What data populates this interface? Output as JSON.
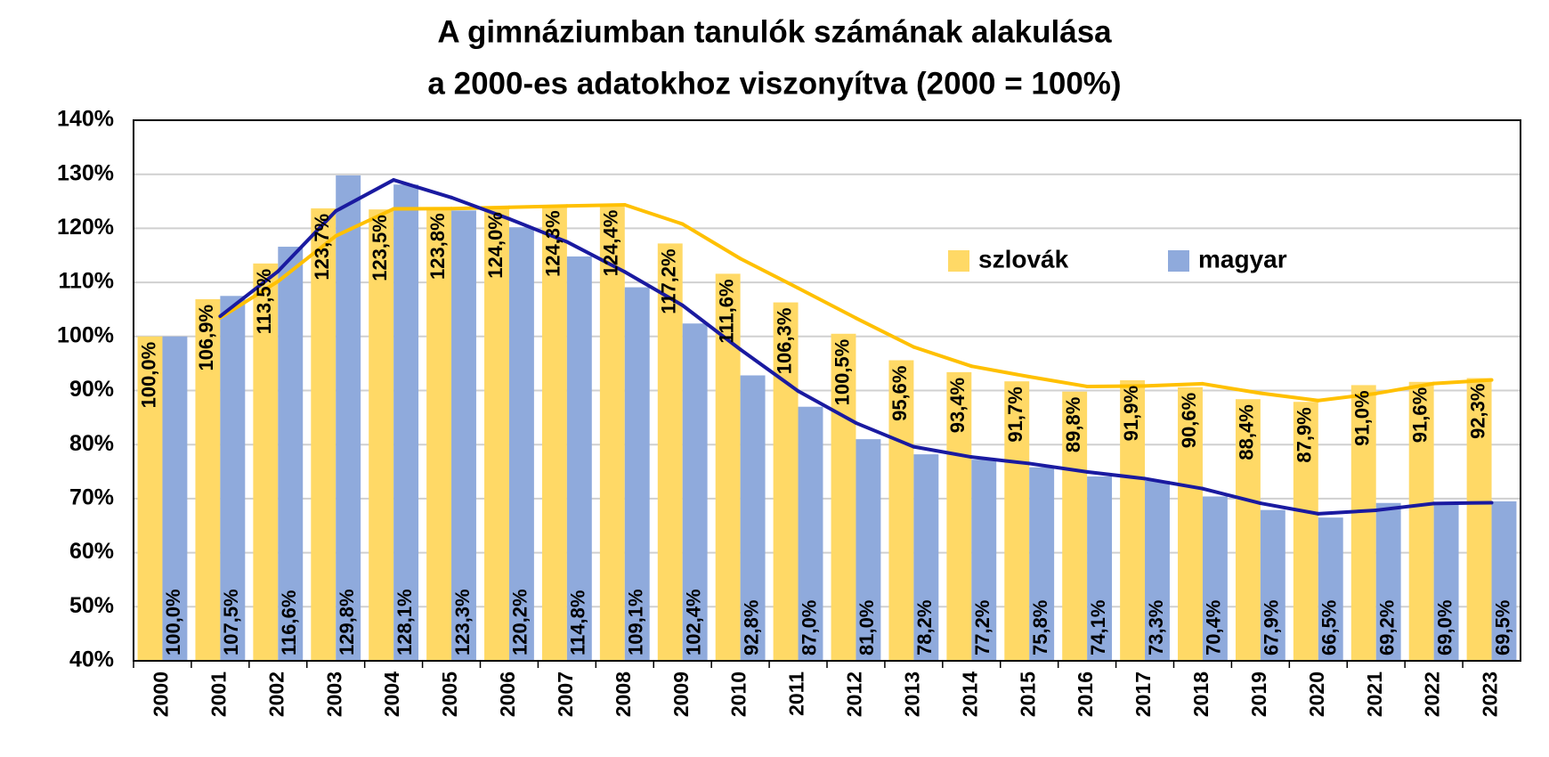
{
  "chart_data": {
    "type": "bar",
    "title": [
      "A gimnáziumban tanulók számának alakulása",
      "a 2000-es adatokhoz viszonyítva (2000 = 100%)"
    ],
    "categories": [
      "2000",
      "2001",
      "2002",
      "2003",
      "2004",
      "2005",
      "2006",
      "2007",
      "2008",
      "2009",
      "2010",
      "2011",
      "2012",
      "2013",
      "2014",
      "2015",
      "2016",
      "2017",
      "2018",
      "2019",
      "2020",
      "2021",
      "2022",
      "2023"
    ],
    "series": [
      {
        "name": "szlovák",
        "color": "#ffd966",
        "line_color": "#ffc000",
        "trendline": "moving_average",
        "trendline_period": 2,
        "values": [
          100.0,
          106.9,
          113.5,
          123.7,
          123.5,
          123.8,
          124.0,
          124.3,
          124.4,
          117.2,
          111.6,
          106.3,
          100.5,
          95.6,
          93.4,
          91.7,
          89.8,
          91.9,
          90.6,
          88.4,
          87.9,
          91.0,
          91.6,
          92.3
        ],
        "value_labels": [
          "100,0%",
          "106,9%",
          "113,5%",
          "123,7%",
          "123,5%",
          "123,8%",
          "124,0%",
          "124,3%",
          "124,4%",
          "117,2%",
          "111,6%",
          "106,3%",
          "100,5%",
          "95,6%",
          "93,4%",
          "91,7%",
          "89,8%",
          "91,9%",
          "90,6%",
          "88,4%",
          "87,9%",
          "91,0%",
          "91,6%",
          "92,3%"
        ]
      },
      {
        "name": "magyar",
        "color": "#8faadc",
        "line_color": "#1a1aa0",
        "trendline": "moving_average",
        "trendline_period": 2,
        "values": [
          100.0,
          107.5,
          116.6,
          129.8,
          128.1,
          123.3,
          120.2,
          114.8,
          109.1,
          102.4,
          92.8,
          87.0,
          81.0,
          78.2,
          77.2,
          75.8,
          74.1,
          73.3,
          70.4,
          67.9,
          66.5,
          69.2,
          69.0,
          69.5
        ],
        "value_labels": [
          "100,0%",
          "107,5%",
          "116,6%",
          "129,8%",
          "128,1%",
          "123,3%",
          "120,2%",
          "114,8%",
          "109,1%",
          "102,4%",
          "92,8%",
          "87,0%",
          "81,0%",
          "78,2%",
          "77,2%",
          "75,8%",
          "74,1%",
          "73,3%",
          "70,4%",
          "67,9%",
          "66,5%",
          "69,2%",
          "69,0%",
          "69,5%"
        ]
      }
    ],
    "ylim": [
      40,
      140
    ],
    "yticks": [
      {
        "value": 40,
        "label": "40%"
      },
      {
        "value": 50,
        "label": "50%"
      },
      {
        "value": 60,
        "label": "60%"
      },
      {
        "value": 70,
        "label": "70%"
      },
      {
        "value": 80,
        "label": "80%"
      },
      {
        "value": 90,
        "label": "90%"
      },
      {
        "value": 100,
        "label": "100%"
      },
      {
        "value": 110,
        "label": "110%"
      },
      {
        "value": 120,
        "label": "120%"
      },
      {
        "value": 130,
        "label": "130%"
      },
      {
        "value": 140,
        "label": "140%"
      }
    ],
    "grid": true,
    "legend": "upper right"
  }
}
